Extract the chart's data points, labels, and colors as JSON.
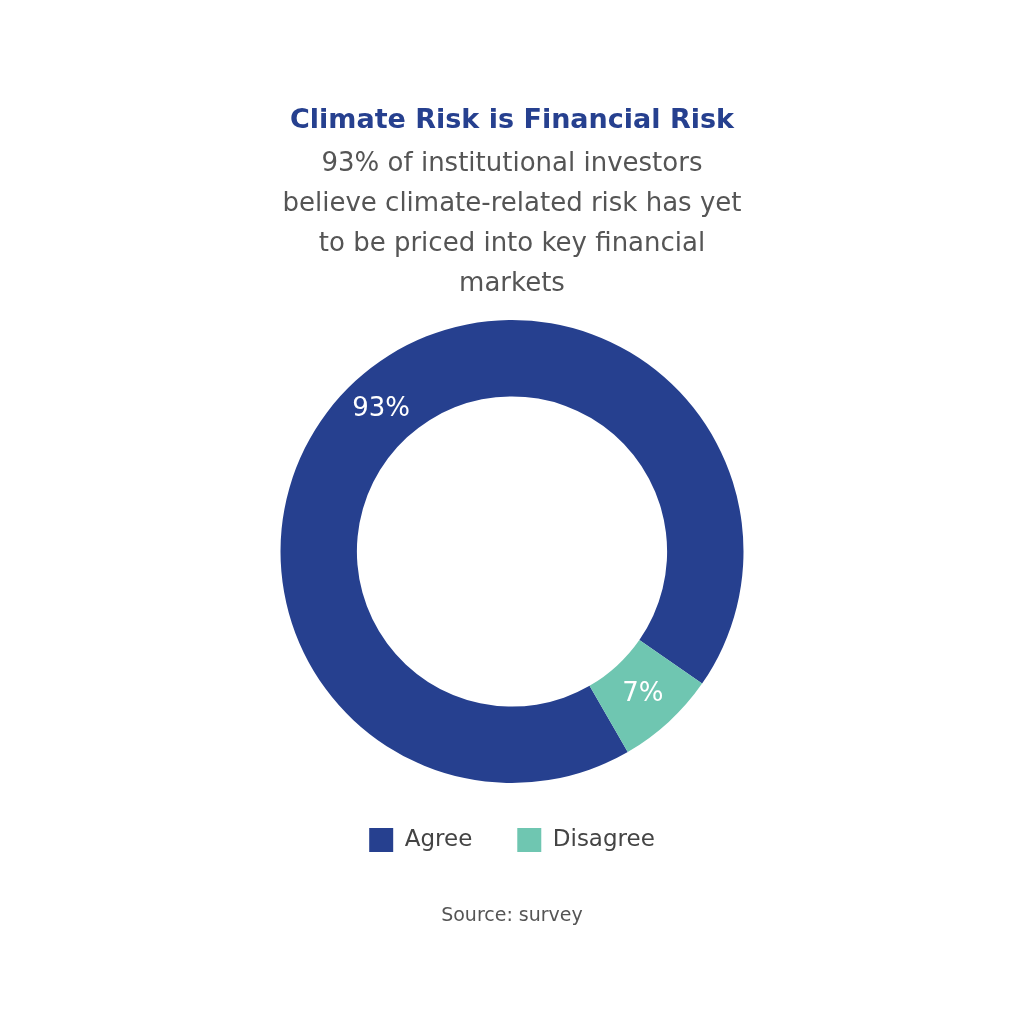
{
  "chart_data": {
    "type": "donut",
    "title": "Climate Risk is Financial Risk",
    "subtitle": "93% of institutional investors believe climate-related risk has yet to be priced into key financial markets",
    "categories": [
      "Agree",
      "Disagree"
    ],
    "values": [
      93,
      7
    ],
    "colors": [
      "#26408f",
      "#6fc6b1"
    ],
    "value_labels": [
      "93%",
      "7%"
    ],
    "legend": "bottom",
    "annotations": [
      "Source: survey"
    ]
  }
}
